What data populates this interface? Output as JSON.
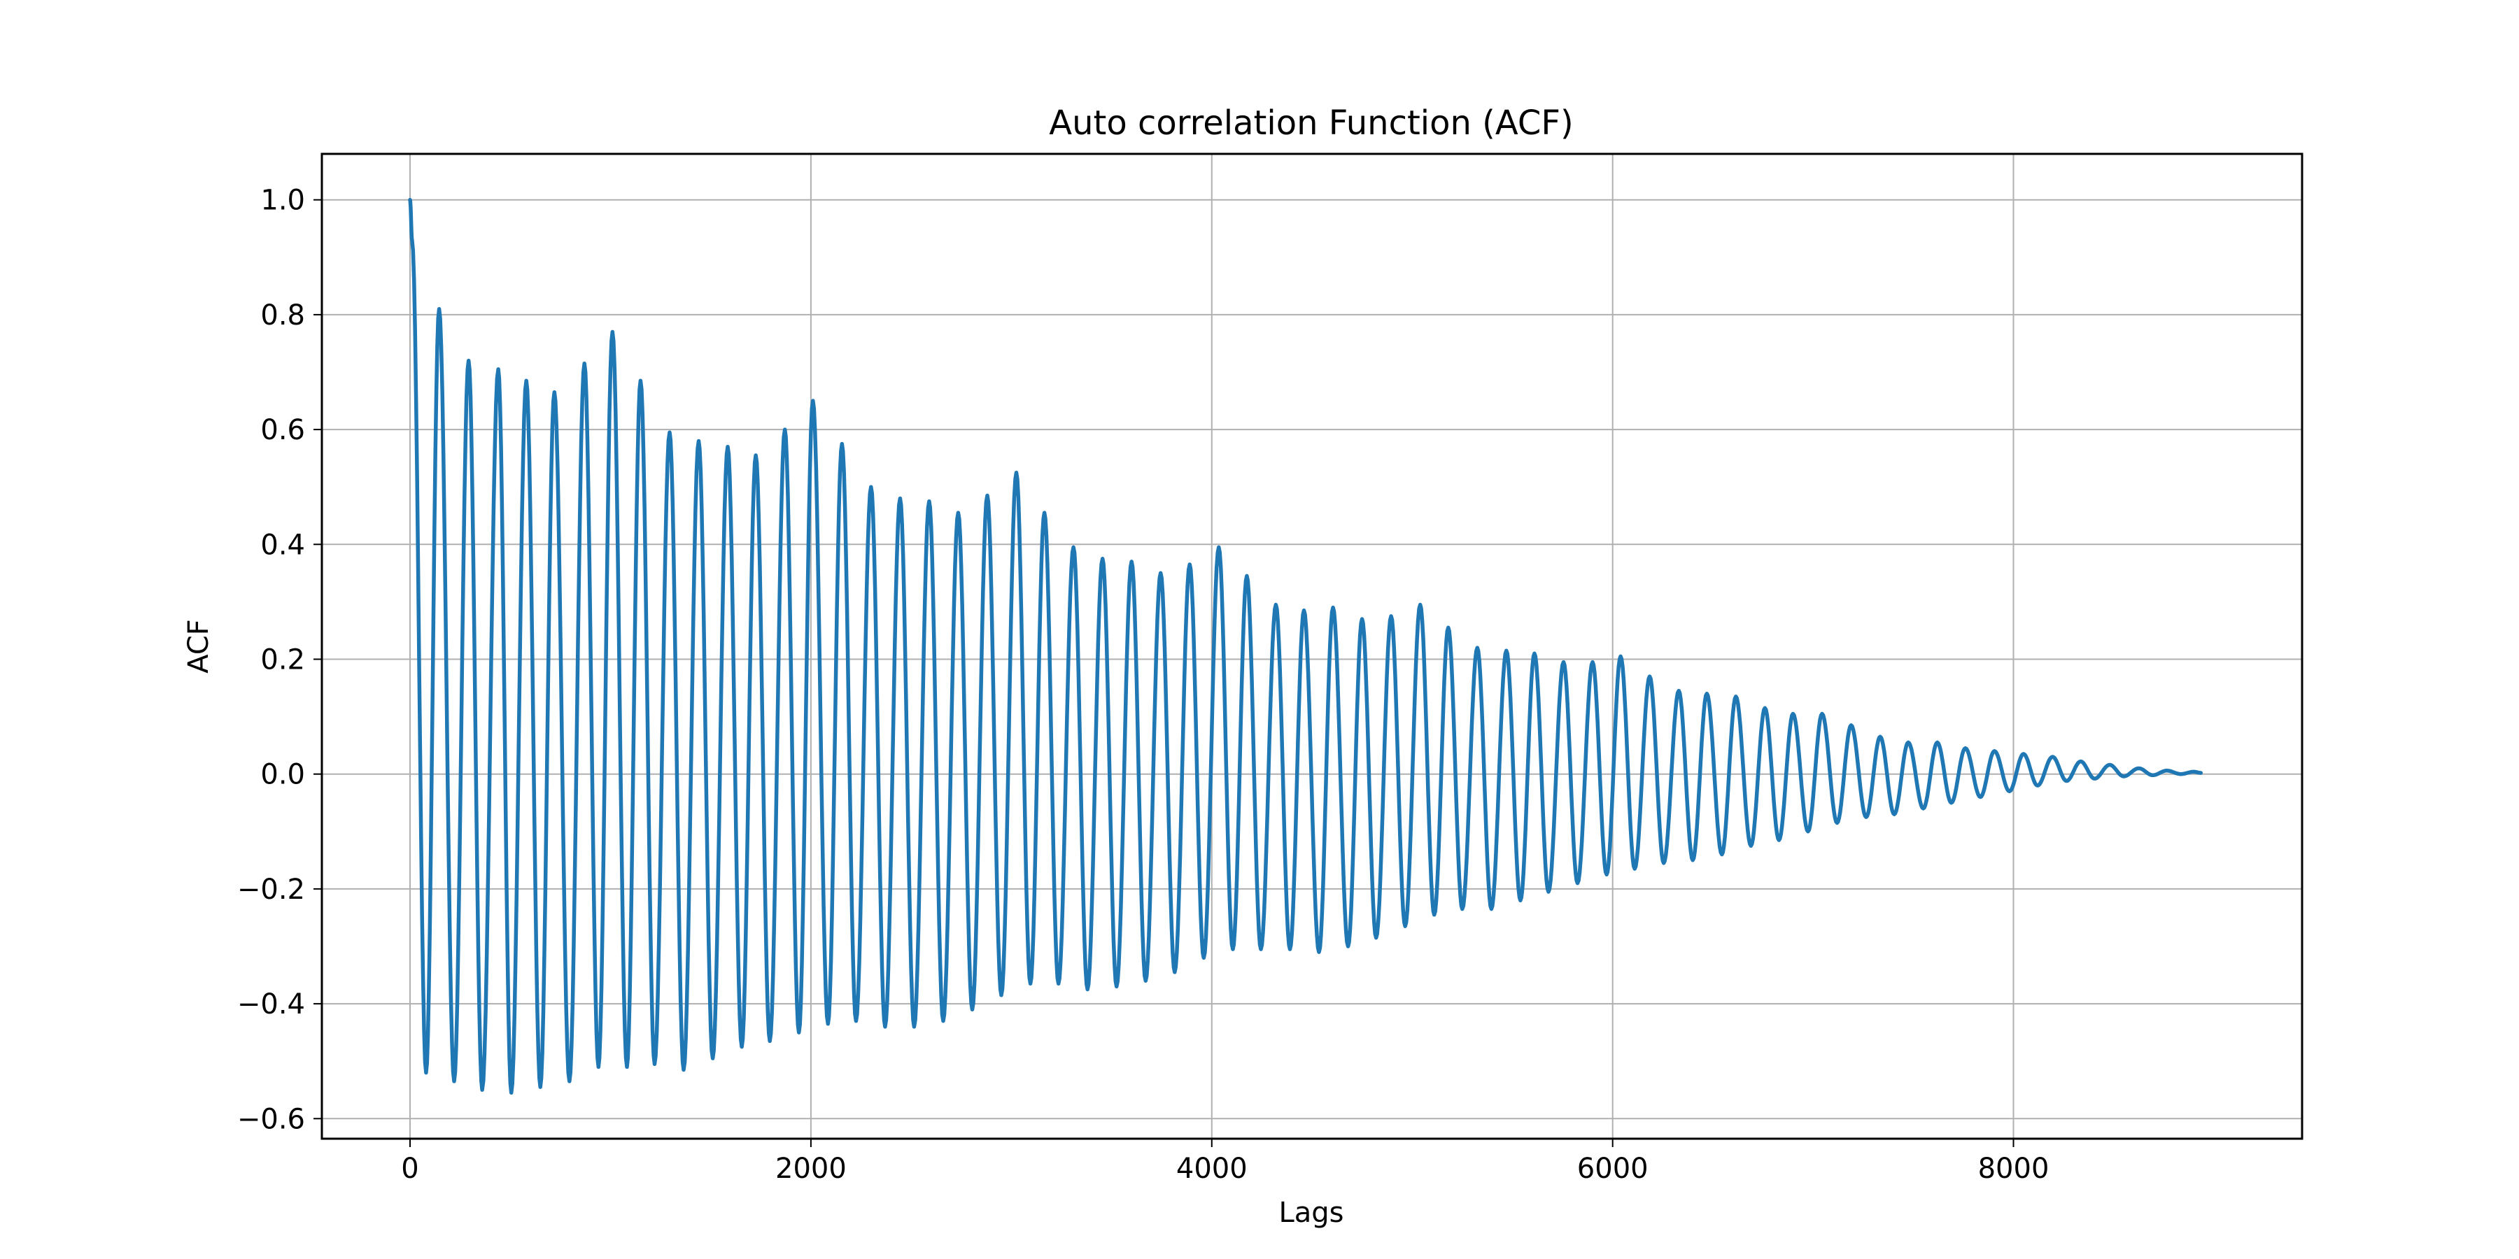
{
  "chart_data": {
    "type": "line",
    "title": "Auto correlation Function (ACF)",
    "xlabel": "Lags",
    "ylabel": "ACF",
    "xlim": [
      -440,
      9440
    ],
    "ylim": [
      -0.635,
      1.08
    ],
    "xticks": [
      0,
      2000,
      4000,
      6000,
      8000
    ],
    "xtick_labels": [
      "0",
      "2000",
      "4000",
      "6000",
      "8000"
    ],
    "yticks": [
      1.0,
      0.8,
      0.6,
      0.4,
      0.2,
      0.0,
      -0.2,
      -0.4,
      -0.6
    ],
    "ytick_labels": [
      "1.0",
      "0.8",
      "0.6",
      "0.4",
      "0.2",
      "0.0",
      "−0.2",
      "−0.4",
      "−0.6"
    ],
    "grid": true,
    "legend": "none",
    "series": [
      {
        "color": "#1f77b4",
        "x": [
          0,
          10,
          80,
          145,
          220,
          292,
          360,
          440,
          505,
          580,
          650,
          720,
          795,
          870,
          940,
          1010,
          1082,
          1150,
          1220,
          1295,
          1365,
          1440,
          1510,
          1585,
          1655,
          1725,
          1795,
          1870,
          1940,
          2010,
          2085,
          2155,
          2225,
          2300,
          2370,
          2445,
          2515,
          2590,
          2660,
          2735,
          2805,
          2880,
          2950,
          3025,
          3095,
          3165,
          3235,
          3310,
          3380,
          3455,
          3525,
          3600,
          3670,
          3745,
          3815,
          3890,
          3960,
          4035,
          4105,
          4175,
          4245,
          4320,
          4390,
          4460,
          4535,
          4605,
          4680,
          4750,
          4820,
          4895,
          4965,
          5040,
          5110,
          5180,
          5250,
          5325,
          5395,
          5470,
          5540,
          5610,
          5680,
          5755,
          5825,
          5900,
          5970,
          6040,
          6110,
          6185,
          6255,
          6330,
          6400,
          6470,
          6545,
          6615,
          6690,
          6760,
          6830,
          6900,
          6975,
          7045,
          7120,
          7190,
          7265,
          7335,
          7405,
          7475,
          7550,
          7620,
          7690,
          7760,
          7835,
          7905,
          7980,
          8050,
          8120,
          8195,
          8265,
          8335,
          8405,
          8480,
          8550,
          8625,
          8695,
          8765,
          8835,
          8900,
          8935
        ],
        "y": [
          1.0,
          0.93,
          -0.52,
          0.81,
          -0.535,
          0.72,
          -0.55,
          0.705,
          -0.555,
          0.685,
          -0.545,
          0.665,
          -0.535,
          0.715,
          -0.51,
          0.77,
          -0.51,
          0.685,
          -0.505,
          0.595,
          -0.515,
          0.58,
          -0.495,
          0.57,
          -0.475,
          0.555,
          -0.465,
          0.6,
          -0.45,
          0.65,
          -0.435,
          0.575,
          -0.43,
          0.5,
          -0.44,
          0.48,
          -0.44,
          0.475,
          -0.43,
          0.455,
          -0.41,
          0.485,
          -0.385,
          0.525,
          -0.365,
          0.455,
          -0.365,
          0.395,
          -0.375,
          0.375,
          -0.37,
          0.37,
          -0.36,
          0.35,
          -0.345,
          0.365,
          -0.32,
          0.395,
          -0.305,
          0.345,
          -0.305,
          0.295,
          -0.305,
          0.285,
          -0.31,
          0.29,
          -0.3,
          0.27,
          -0.285,
          0.275,
          -0.265,
          0.295,
          -0.245,
          0.255,
          -0.235,
          0.22,
          -0.235,
          0.215,
          -0.22,
          0.21,
          -0.205,
          0.195,
          -0.19,
          0.195,
          -0.175,
          0.205,
          -0.165,
          0.17,
          -0.155,
          0.145,
          -0.15,
          0.14,
          -0.14,
          0.135,
          -0.125,
          0.115,
          -0.115,
          0.105,
          -0.1,
          0.105,
          -0.085,
          0.085,
          -0.075,
          0.065,
          -0.07,
          0.055,
          -0.06,
          0.055,
          -0.05,
          0.045,
          -0.04,
          0.04,
          -0.03,
          0.035,
          -0.02,
          0.03,
          -0.012,
          0.022,
          -0.008,
          0.016,
          -0.004,
          0.01,
          -0.002,
          0.006,
          0.0,
          0.004,
          0.002
        ]
      }
    ]
  }
}
